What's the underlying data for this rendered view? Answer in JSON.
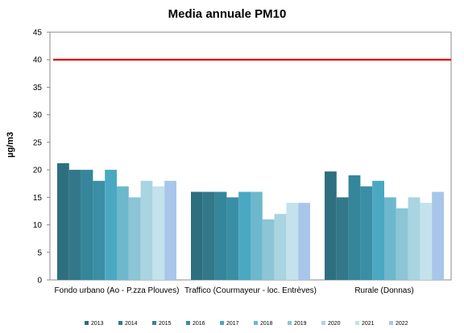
{
  "chart_data": {
    "type": "bar",
    "title": "Media annuale PM10",
    "ylabel": "µg/m3",
    "xlabel": "",
    "ylim": [
      0,
      45
    ],
    "yticks": [
      0,
      5,
      10,
      15,
      20,
      25,
      30,
      35,
      40,
      45
    ],
    "grid": false,
    "legend_position": "bottom",
    "limit_line": {
      "value": 40,
      "color": "#e00000"
    },
    "categories": [
      "Fondo urbano (Ao - P.zza Plouves)",
      "Traffico (Courmayeur - loc. Entrèves)",
      "Rurale (Donnas)"
    ],
    "series": [
      {
        "name": "2013",
        "color": "#2e6f7f",
        "values": [
          21.2,
          16,
          19.7
        ]
      },
      {
        "name": "2014",
        "color": "#33788a",
        "values": [
          20,
          16,
          15
        ]
      },
      {
        "name": "2015",
        "color": "#35869a",
        "values": [
          20,
          16,
          19
        ]
      },
      {
        "name": "2016",
        "color": "#3a8fa6",
        "values": [
          18,
          15,
          17
        ]
      },
      {
        "name": "2017",
        "color": "#4aa8c2",
        "values": [
          20,
          16,
          18
        ]
      },
      {
        "name": "2018",
        "color": "#6db8cd",
        "values": [
          17,
          16,
          15
        ]
      },
      {
        "name": "2019",
        "color": "#8cc5d6",
        "values": [
          15,
          11,
          13
        ]
      },
      {
        "name": "2020",
        "color": "#a9d4e1",
        "values": [
          18,
          12,
          15
        ]
      },
      {
        "name": "2021",
        "color": "#c3e2ec",
        "values": [
          17,
          14,
          14
        ]
      },
      {
        "name": "2022",
        "color": "#a8c6ea",
        "values": [
          18,
          14,
          16
        ]
      }
    ]
  }
}
